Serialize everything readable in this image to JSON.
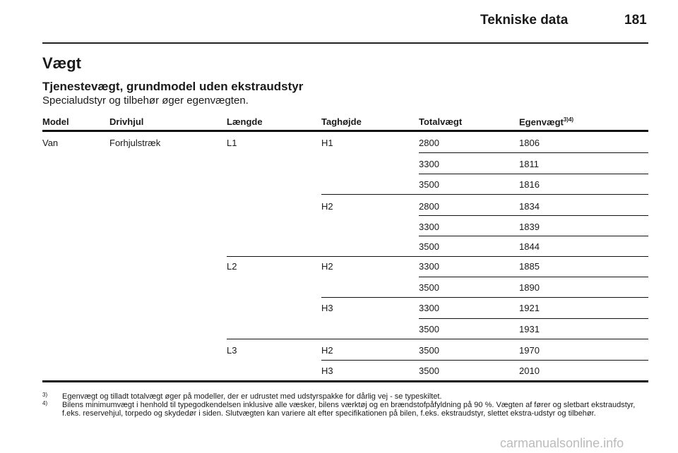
{
  "header": {
    "title": "Tekniske data",
    "page_number": "181"
  },
  "section": {
    "title": "Vægt",
    "subtitle": "Tjenestevægt, grundmodel uden ekstraudstyr",
    "description": "Specialudstyr og tilbehør øger egenvægten."
  },
  "table": {
    "headers": [
      "Model",
      "Drivhjul",
      "Længde",
      "Taghøjde",
      "Totalvægt",
      "Egenvægt"
    ],
    "header_footnote_ref": "3)4)",
    "model": "Van",
    "drive": "Forhjulstræk",
    "lengths": [
      "L1",
      "L2",
      "L3"
    ],
    "heights": [
      "H1",
      "H2",
      "H2",
      "H3",
      "H2",
      "H3"
    ],
    "total_weights": [
      "2800",
      "3300",
      "3500",
      "2800",
      "3300",
      "3500",
      "3300",
      "3500",
      "3300",
      "3500",
      "3500",
      "3500"
    ],
    "curb_weights": [
      "1806",
      "1811",
      "1816",
      "1834",
      "1839",
      "1844",
      "1885",
      "1890",
      "1921",
      "1931",
      "1970",
      "2010"
    ]
  },
  "footnotes": [
    {
      "mark": "3)",
      "text": "Egenvægt og tilladt totalvægt øger på modeller, der er udrustet med udstyrspakke for dårlig vej - se typeskiltet."
    },
    {
      "mark": "4)",
      "text": "Bilens minimumvægt i henhold til typegodkendelsen inklusive alle væsker, bilens værktøj og en brændstofpåfyldning på 90 %. Vægten af fører og sletbart ekstraudstyr, f.eks. reservehjul, torpedo og skydedør i siden. Slutvægten kan variere alt efter specifikationen på bilen, f.eks. ekstraudstyr, slettet ekstra-udstyr og tilbehør."
    }
  ],
  "watermark": "carmanualsonline.info"
}
